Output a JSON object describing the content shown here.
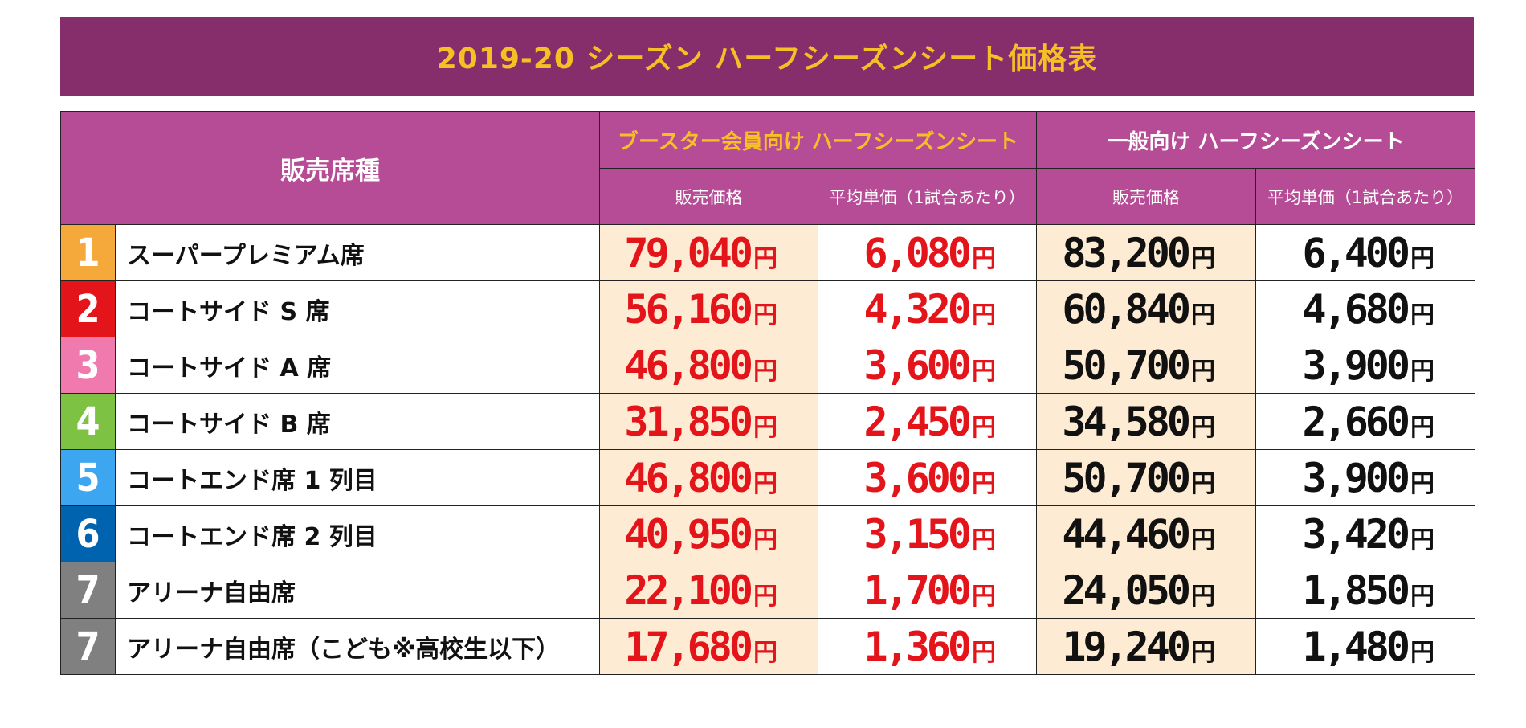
{
  "title": "2019-20 シーズン ハーフシーズンシート価格表",
  "headers": {
    "seat_type": "販売席種",
    "booster_group": "ブースター会員向け ハーフシーズンシート",
    "general_group": "一般向け ハーフシーズンシート",
    "price": "販売価格",
    "avg_price": "平均単価（1試合あたり）"
  },
  "yen": "円",
  "colors": {
    "title_bg": "#862e6b",
    "title_text": "#f6bf26",
    "header_bg": "#b64b96",
    "booster_header_text": "#f6bf26",
    "shaded_cell": "#fdebd3",
    "booster_price_text": "#e3141a",
    "general_price_text": "#111111"
  },
  "rows": [
    {
      "num": "1",
      "color": "#f5a93a",
      "name": "スーパープレミアム席",
      "booster_price": "79,040",
      "booster_avg": "6,080",
      "general_price": "83,200",
      "general_avg": "6,400"
    },
    {
      "num": "2",
      "color": "#e3141a",
      "name": "コートサイド S 席",
      "booster_price": "56,160",
      "booster_avg": "4,320",
      "general_price": "60,840",
      "general_avg": "4,680"
    },
    {
      "num": "3",
      "color": "#f07aae",
      "name": "コートサイド A 席",
      "booster_price": "46,800",
      "booster_avg": "3,600",
      "general_price": "50,700",
      "general_avg": "3,900"
    },
    {
      "num": "4",
      "color": "#7dc242",
      "name": "コートサイド B 席",
      "booster_price": "31,850",
      "booster_avg": "2,450",
      "general_price": "34,580",
      "general_avg": "2,660"
    },
    {
      "num": "5",
      "color": "#3da6f0",
      "name": "コートエンド席 1 列目",
      "booster_price": "46,800",
      "booster_avg": "3,600",
      "general_price": "50,700",
      "general_avg": "3,900"
    },
    {
      "num": "6",
      "color": "#0063b0",
      "name": "コートエンド席 2 列目",
      "booster_price": "40,950",
      "booster_avg": "3,150",
      "general_price": "44,460",
      "general_avg": "3,420"
    },
    {
      "num": "7",
      "color": "#808080",
      "name": "アリーナ自由席",
      "booster_price": "22,100",
      "booster_avg": "1,700",
      "general_price": "24,050",
      "general_avg": "1,850"
    },
    {
      "num": "7",
      "color": "#808080",
      "name": "アリーナ自由席（こども※高校生以下）",
      "booster_price": "17,680",
      "booster_avg": "1,360",
      "general_price": "19,240",
      "general_avg": "1,480"
    }
  ]
}
